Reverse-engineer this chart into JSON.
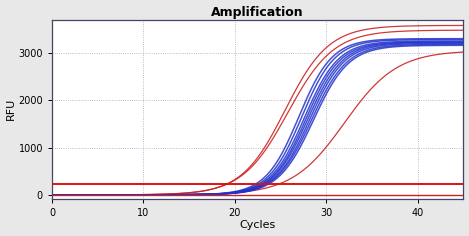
{
  "title": "Amplification",
  "xlabel": "Cycles",
  "ylabel": "RFU",
  "xlim": [
    0,
    45
  ],
  "ylim": [
    -80,
    3700
  ],
  "xticks": [
    0,
    10,
    20,
    30,
    40
  ],
  "yticks": [
    0,
    1000,
    2000,
    3000
  ],
  "background_color": "#e8e8e8",
  "plot_bg_color": "#ffffff",
  "grid_color": "#9999bb",
  "blue_curves": [
    {
      "midpoint": 27.0,
      "rate": 0.55,
      "plateau": 3300
    },
    {
      "midpoint": 27.3,
      "rate": 0.55,
      "plateau": 3280
    },
    {
      "midpoint": 27.6,
      "rate": 0.54,
      "plateau": 3250
    },
    {
      "midpoint": 27.8,
      "rate": 0.54,
      "plateau": 3230
    },
    {
      "midpoint": 28.0,
      "rate": 0.53,
      "plateau": 3220
    },
    {
      "midpoint": 28.2,
      "rate": 0.53,
      "plateau": 3200
    },
    {
      "midpoint": 28.4,
      "rate": 0.52,
      "plateau": 3180
    },
    {
      "midpoint": 28.6,
      "rate": 0.52,
      "plateau": 3160
    }
  ],
  "red_curves": [
    {
      "midpoint": 25.5,
      "rate": 0.42,
      "plateau": 3580
    },
    {
      "midpoint": 32.0,
      "rate": 0.35,
      "plateau": 3050
    },
    {
      "midpoint": 25.8,
      "rate": 0.4,
      "plateau": 3480
    }
  ],
  "threshold_y1": 230,
  "threshold_color1": "#dd1111",
  "threshold_color2": "#cc2222",
  "blue_color": "#2233cc",
  "red_curve_color": "#cc2222"
}
